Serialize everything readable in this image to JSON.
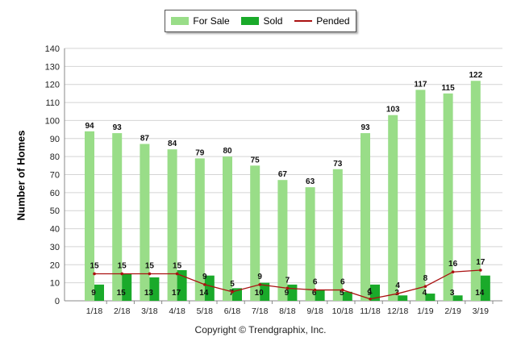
{
  "chart_data": {
    "type": "bar",
    "ylabel": "Number of Homes",
    "ylim": [
      0,
      140
    ],
    "yticks": [
      0,
      10,
      20,
      30,
      40,
      50,
      60,
      70,
      80,
      90,
      100,
      110,
      120,
      130,
      140
    ],
    "grid": true,
    "legend_position": "top-center",
    "categories": [
      "1/18",
      "2/18",
      "3/18",
      "4/18",
      "5/18",
      "6/18",
      "7/18",
      "8/18",
      "9/18",
      "10/18",
      "11/18",
      "12/18",
      "1/19",
      "2/19",
      "3/19"
    ],
    "series": [
      {
        "name": "For Sale",
        "kind": "bar",
        "color": "#99dd88",
        "values": [
          94,
          93,
          87,
          84,
          79,
          80,
          75,
          67,
          63,
          73,
          93,
          103,
          117,
          115,
          122
        ]
      },
      {
        "name": "Sold",
        "kind": "bar",
        "color": "#1aaa2a",
        "values": [
          9,
          15,
          13,
          17,
          14,
          7,
          10,
          9,
          6,
          5,
          9,
          3,
          4,
          3,
          14
        ]
      },
      {
        "name": "Pended",
        "kind": "line",
        "color": "#aa1111",
        "values": [
          15,
          15,
          15,
          15,
          9,
          5,
          9,
          7,
          6,
          6,
          1,
          4,
          8,
          16,
          17
        ]
      }
    ]
  },
  "legend": {
    "for_sale": "For Sale",
    "sold": "Sold",
    "pended": "Pended"
  },
  "footer": "Copyright © Trendgraphix, Inc."
}
